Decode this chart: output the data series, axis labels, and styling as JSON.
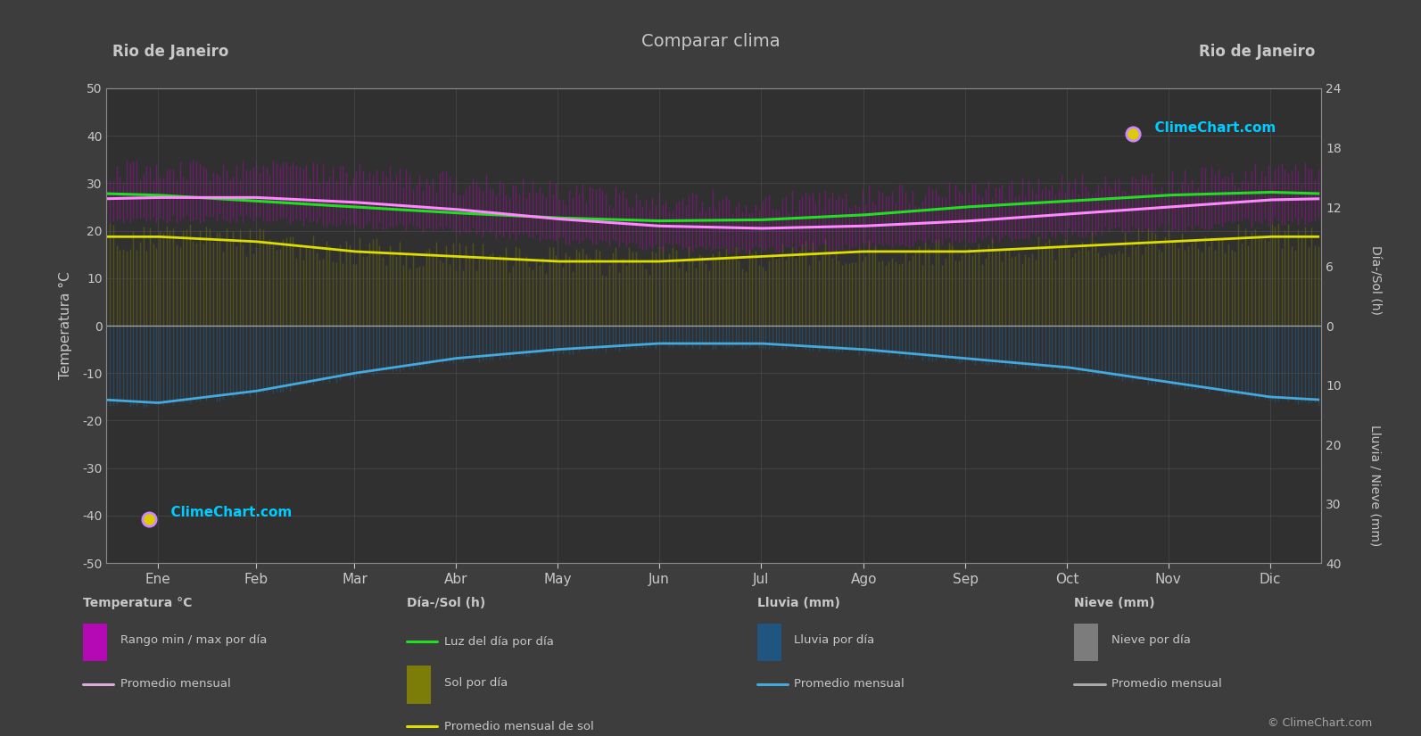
{
  "title": "Comparar clima",
  "city_left": "Rio de Janeiro",
  "city_right": "Rio de Janeiro",
  "bg_color": "#3d3d3d",
  "plot_bg_color": "#303030",
  "grid_color": "#505050",
  "text_color": "#c8c8c8",
  "months": [
    "Ene",
    "Feb",
    "Mar",
    "Abr",
    "May",
    "Jun",
    "Jul",
    "Ago",
    "Sep",
    "Oct",
    "Nov",
    "Dic"
  ],
  "days_per_month": [
    31,
    28,
    31,
    30,
    31,
    30,
    31,
    31,
    30,
    31,
    30,
    31
  ],
  "temp_avg_monthly": [
    27.0,
    27.0,
    26.0,
    24.5,
    22.5,
    21.0,
    20.5,
    21.0,
    22.0,
    23.5,
    25.0,
    26.5
  ],
  "temp_min_monthly": [
    23.5,
    23.5,
    22.5,
    21.0,
    19.0,
    17.5,
    17.0,
    17.5,
    19.0,
    20.5,
    21.5,
    23.0
  ],
  "temp_max_monthly": [
    30.0,
    30.5,
    29.5,
    27.5,
    25.5,
    24.0,
    23.5,
    24.5,
    25.5,
    27.0,
    28.0,
    29.5
  ],
  "daylight_monthly": [
    13.2,
    12.6,
    12.0,
    11.4,
    10.9,
    10.6,
    10.7,
    11.2,
    12.0,
    12.6,
    13.2,
    13.5
  ],
  "sol_avg_monthly": [
    9.0,
    8.5,
    7.5,
    7.0,
    6.5,
    6.5,
    7.0,
    7.5,
    7.5,
    8.0,
    8.5,
    9.0
  ],
  "rain_avg_monthly": [
    13.0,
    11.0,
    8.0,
    5.5,
    4.0,
    3.0,
    3.0,
    4.0,
    5.5,
    7.0,
    9.5,
    12.0
  ],
  "ylabel_left": "Temperatura °C",
  "ylabel_right1": "Día-/Sol (h)",
  "ylabel_right2": "Lluvia / Nieve (mm)",
  "sun_scale": 2.0833,
  "rain_scale": 1.25,
  "temp_band_noise_low": 2.0,
  "temp_band_noise_high": 5.0,
  "sol_noise": 1.5,
  "rain_noise": 1.0
}
